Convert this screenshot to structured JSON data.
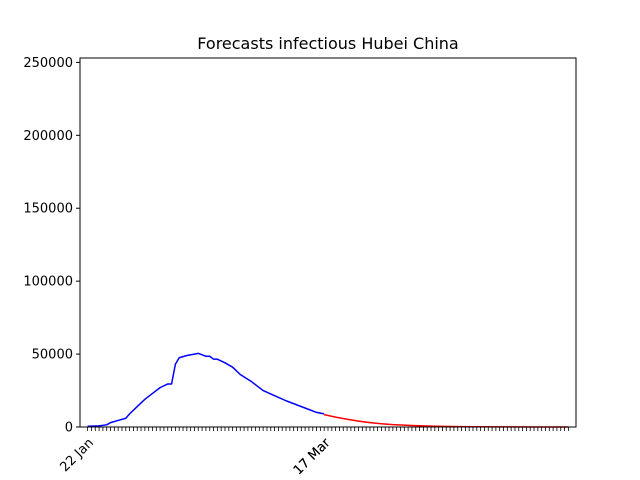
{
  "chart_data": {
    "type": "line",
    "title": "Forecasts infectious Hubei China",
    "xlabel": "",
    "ylabel": "",
    "ylim": [
      0,
      253000
    ],
    "yticks": [
      0,
      50000,
      100000,
      150000,
      200000,
      250000
    ],
    "xtick_labels": [
      "22 Jan",
      "17 Mar",
      "17 Mar"
    ],
    "grid": false,
    "x_days_from_22_Jan": {
      "start": -2,
      "end": 128,
      "tick_every_day": true
    },
    "series": [
      {
        "color": "#0000ff",
        "points": [
          [
            0,
            500
          ],
          [
            3,
            800
          ],
          [
            5,
            1500
          ],
          [
            6,
            3000
          ],
          [
            8,
            4500
          ],
          [
            10,
            6000
          ],
          [
            11,
            9000
          ],
          [
            13,
            14000
          ],
          [
            15,
            19000
          ],
          [
            17,
            23000
          ],
          [
            19,
            27000
          ],
          [
            21,
            29500
          ],
          [
            22,
            29500
          ],
          [
            23,
            43000
          ],
          [
            24,
            47500
          ],
          [
            26,
            49000
          ],
          [
            28,
            50000
          ],
          [
            29,
            50500
          ],
          [
            30,
            49500
          ],
          [
            31,
            48500
          ],
          [
            32,
            48500
          ],
          [
            33,
            46500
          ],
          [
            34,
            46500
          ],
          [
            36,
            44000
          ],
          [
            38,
            41000
          ],
          [
            40,
            36000
          ],
          [
            43,
            31000
          ],
          [
            46,
            25000
          ],
          [
            49,
            21500
          ],
          [
            52,
            18000
          ],
          [
            55,
            15000
          ],
          [
            58,
            12000
          ],
          [
            60,
            10000
          ],
          [
            62,
            9000
          ]
        ]
      },
      {
        "color": "#ff0000",
        "points": [
          [
            62,
            8500
          ],
          [
            65,
            6800
          ],
          [
            68,
            5300
          ],
          [
            71,
            4000
          ],
          [
            74,
            3000
          ],
          [
            77,
            2200
          ],
          [
            80,
            1600
          ],
          [
            85,
            1000
          ],
          [
            90,
            600
          ],
          [
            95,
            350
          ],
          [
            100,
            200
          ],
          [
            110,
            80
          ],
          [
            120,
            30
          ],
          [
            126,
            10
          ]
        ]
      }
    ]
  }
}
